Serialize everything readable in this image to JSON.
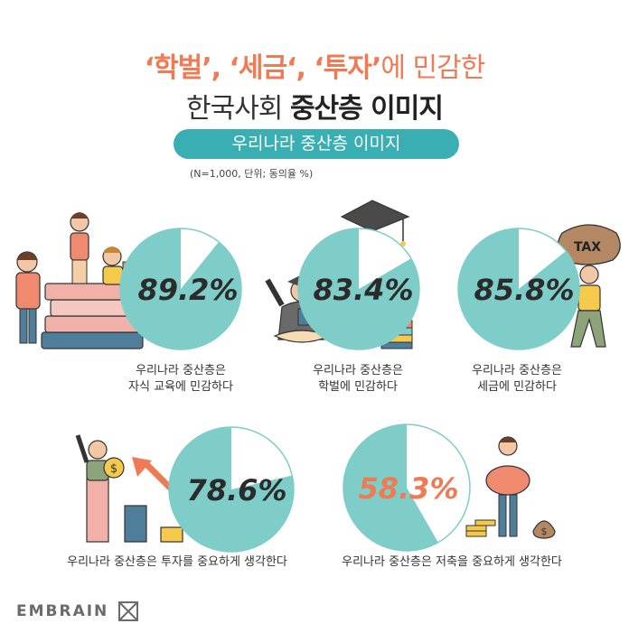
{
  "title": {
    "line1_a": "‘학벌’, ‘세금‘, ‘투자’",
    "line1_b": "에 민감한",
    "line2_a": "한국사회 ",
    "line2_b": "중산층 이미지"
  },
  "subtitle": "우리나라 중산층 이미지",
  "note": "(N=1,000, 단위; 동의율 %)",
  "brand": "EMBRAIN",
  "colors": {
    "teal": "#7ecdc8",
    "slice_bg": "#ffffff",
    "value_dark": "#2b2b2b",
    "value_highlight": "#ef7b55"
  },
  "chart_data": {
    "type": "pie",
    "unit": "%",
    "items": [
      {
        "label_line1": "우리나라 중산층은",
        "label_line2": "자식 교육에 민감하다",
        "value": 89.2,
        "value_text": "89.2%"
      },
      {
        "label_line1": "우리나라 중산층은",
        "label_line2": "학벌에 민감하다",
        "value": 83.4,
        "value_text": "83.4%"
      },
      {
        "label_line1": "우리나라 중산층은",
        "label_line2": "세금에 민감하다",
        "value": 85.8,
        "value_text": "85.8%"
      },
      {
        "label_line1": "우리나라 중산층은 투자를 중요하게 생각한다",
        "label_line2": "",
        "value": 78.6,
        "value_text": "78.6%"
      },
      {
        "label_line1": "우리나라 중산층은 저축을 중요하게 생각한다",
        "label_line2": "",
        "value": 58.3,
        "value_text": "58.3%",
        "highlight": true
      }
    ]
  },
  "illustration": {
    "tax_sign": "TAX"
  }
}
